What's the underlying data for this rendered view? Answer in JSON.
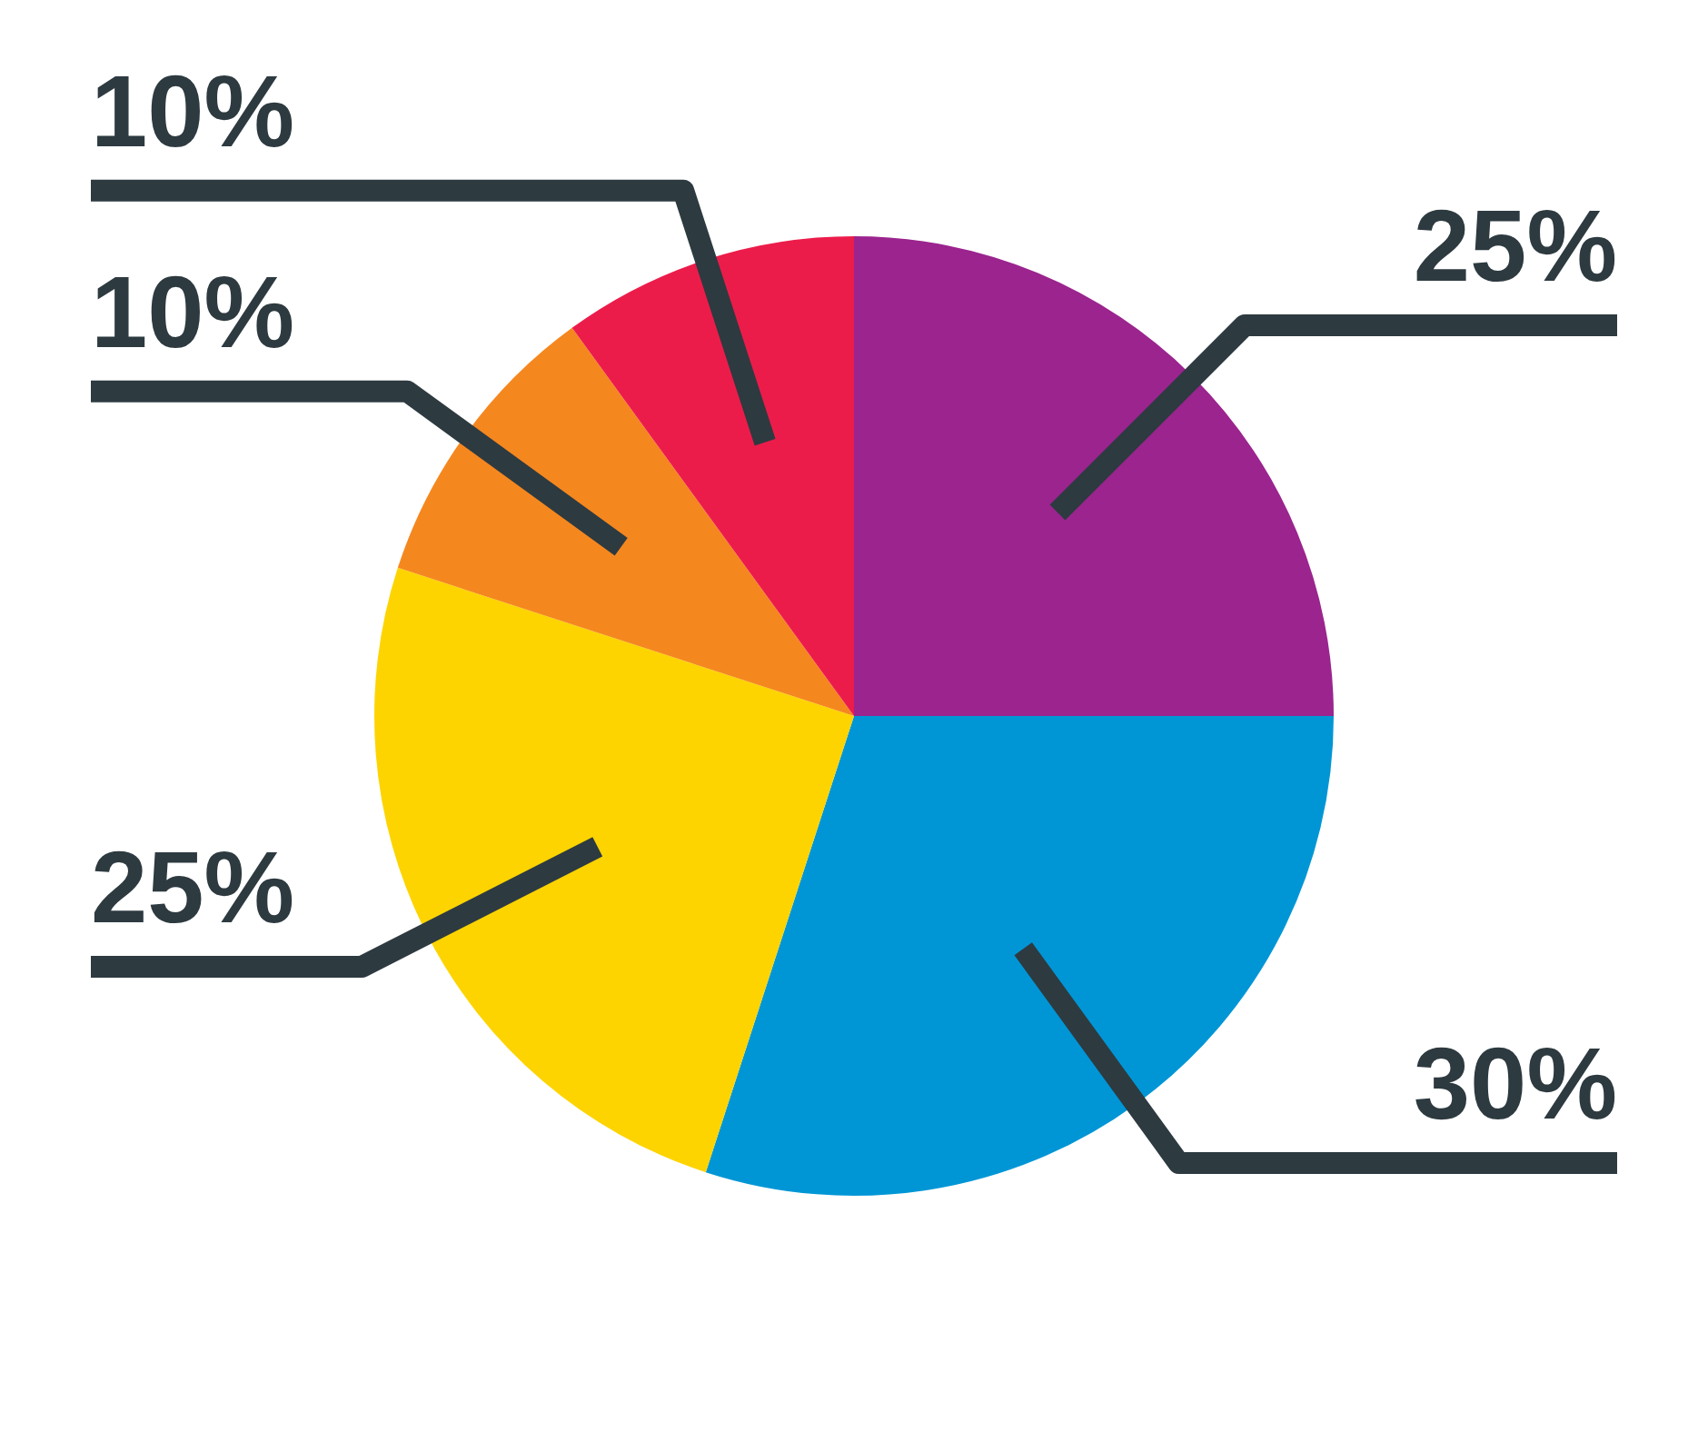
{
  "chart_data": {
    "type": "pie",
    "categories": [
      null,
      null,
      null,
      null,
      null
    ],
    "values": [
      25,
      30,
      25,
      10,
      10
    ],
    "colors": [
      "#9b248e",
      "#0096d6",
      "#fdd400",
      "#f5871f",
      "#ec1c4a"
    ],
    "value_labels": [
      "25%",
      "30%",
      "25%",
      "10%",
      "10%"
    ]
  }
}
